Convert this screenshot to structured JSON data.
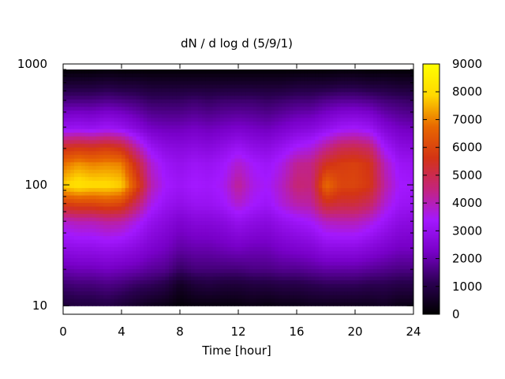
{
  "chart_data": {
    "type": "heatmap",
    "title": "dN / d log d (5/9/1)",
    "xlabel": "Time [hour]",
    "ylabel": "",
    "xlim": [
      0,
      24
    ],
    "ylim": [
      8.5,
      1000
    ],
    "y_scale": "log",
    "x_ticks": [
      "0",
      "4",
      "8",
      "12",
      "16",
      "20",
      "24"
    ],
    "y_ticks": [
      "10",
      "100",
      "1000"
    ],
    "colorbar": {
      "range": [
        0,
        9000
      ],
      "ticks": [
        "0",
        "1000",
        "2000",
        "3000",
        "4000",
        "5000",
        "6000",
        "7000",
        "8000",
        "9000"
      ],
      "palette": [
        "#000000",
        "#2a0050",
        "#7800c8",
        "#a318ff",
        "#c4247c",
        "#d43414",
        "#e86800",
        "#ffd800",
        "#ffff00"
      ]
    },
    "grid": false,
    "cells": {
      "time_hours": [
        0,
        1,
        2,
        3,
        4,
        5,
        6,
        7,
        8,
        9,
        10,
        11,
        12,
        13,
        14,
        15,
        16,
        17,
        18,
        19,
        20,
        21,
        22,
        23,
        24
      ],
      "diameter": [
        10,
        15,
        20,
        30,
        50,
        70,
        100,
        150,
        200,
        300,
        500,
        700,
        900
      ],
      "values": [
        [
          800,
          900,
          900,
          1000,
          800,
          600,
          400,
          300,
          100,
          200,
          200,
          200,
          200,
          300,
          200,
          300,
          300,
          400,
          400,
          400,
          400,
          400,
          500,
          300,
          300
        ],
        [
          1400,
          1500,
          1500,
          1600,
          1500,
          1300,
          1200,
          1000,
          500,
          800,
          900,
          800,
          800,
          900,
          900,
          1000,
          1000,
          1100,
          1200,
          1200,
          1200,
          1100,
          1100,
          1000,
          1000
        ],
        [
          2000,
          2100,
          2100,
          2200,
          2100,
          2000,
          1800,
          1700,
          1300,
          1500,
          1500,
          1500,
          1500,
          1600,
          1600,
          1700,
          1700,
          1800,
          1900,
          1900,
          1900,
          1800,
          1700,
          1600,
          1600
        ],
        [
          2800,
          2900,
          2900,
          3000,
          2900,
          2700,
          2400,
          2200,
          1900,
          2000,
          2000,
          2100,
          2200,
          2100,
          2100,
          2300,
          2400,
          2500,
          2800,
          2800,
          2800,
          2600,
          2400,
          2200,
          2200
        ],
        [
          3800,
          4000,
          4000,
          4200,
          4100,
          3600,
          3000,
          2700,
          2400,
          2600,
          2600,
          2700,
          3000,
          2800,
          2700,
          3000,
          3200,
          3400,
          3900,
          4000,
          4000,
          3700,
          3200,
          2800,
          2700
        ],
        [
          5800,
          6000,
          6000,
          6200,
          6000,
          4800,
          3600,
          3100,
          2900,
          3100,
          3100,
          3300,
          3800,
          3400,
          3200,
          3700,
          4100,
          4200,
          5400,
          5200,
          5200,
          4800,
          3800,
          3200,
          3100
        ],
        [
          7800,
          8200,
          8000,
          8000,
          7800,
          6200,
          4100,
          3400,
          3200,
          3400,
          3300,
          3500,
          4300,
          3600,
          3400,
          3900,
          4600,
          4500,
          6800,
          6000,
          6000,
          5700,
          4200,
          3400,
          3300
        ],
        [
          6800,
          7200,
          7000,
          7100,
          7000,
          5400,
          3800,
          3200,
          3000,
          3200,
          3100,
          3300,
          3800,
          3400,
          3200,
          3600,
          4300,
          4400,
          5500,
          5800,
          5900,
          5600,
          4000,
          3200,
          3100
        ],
        [
          5600,
          5800,
          5700,
          5900,
          5600,
          4300,
          3200,
          2800,
          2700,
          2800,
          2700,
          2900,
          3200,
          2900,
          2800,
          3100,
          3500,
          3700,
          4400,
          5000,
          5100,
          4800,
          3400,
          2800,
          2700
        ],
        [
          3000,
          3100,
          3000,
          3200,
          3000,
          2600,
          2200,
          2100,
          2100,
          2200,
          2100,
          2200,
          2300,
          2200,
          2100,
          2300,
          2500,
          2600,
          2900,
          3200,
          3300,
          3100,
          2500,
          2200,
          2100
        ],
        [
          1600,
          1600,
          1600,
          1700,
          1600,
          1500,
          1300,
          1300,
          1300,
          1400,
          1300,
          1400,
          1400,
          1400,
          1300,
          1400,
          1500,
          1500,
          1700,
          1800,
          1800,
          1700,
          1500,
          1400,
          1300
        ],
        [
          700,
          700,
          700,
          800,
          700,
          700,
          600,
          600,
          600,
          600,
          600,
          600,
          600,
          600,
          600,
          600,
          700,
          700,
          700,
          800,
          800,
          700,
          700,
          600,
          600
        ],
        [
          100,
          100,
          100,
          150,
          100,
          100,
          100,
          100,
          100,
          100,
          100,
          100,
          100,
          100,
          100,
          100,
          100,
          100,
          100,
          150,
          150,
          100,
          100,
          100,
          100
        ]
      ]
    }
  }
}
